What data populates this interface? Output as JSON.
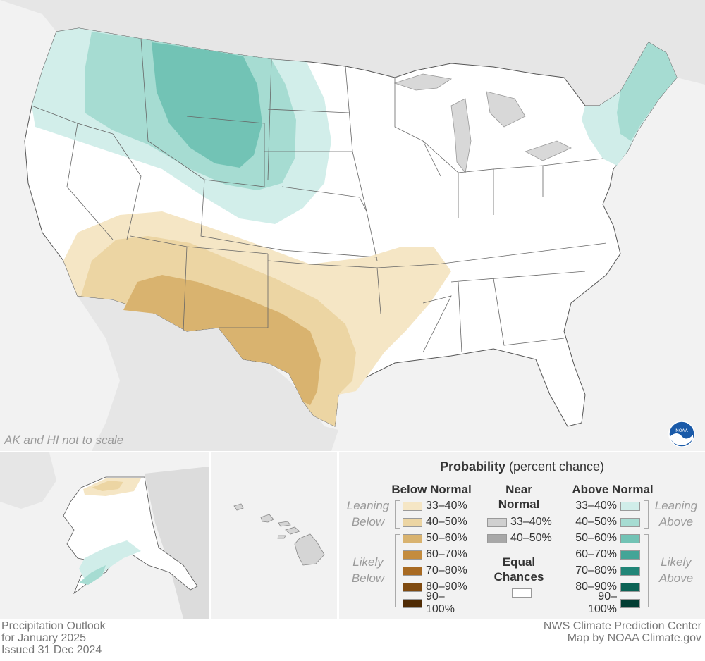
{
  "map": {
    "scale_note": "AK and HI not to scale",
    "logo": {
      "icon": "noaa-logo-icon",
      "text": "NOAA"
    }
  },
  "legend": {
    "title_bold": "Probability",
    "title_rest": " (percent chance)",
    "below": {
      "heading": "Below Normal",
      "leaning_label": [
        "Leaning",
        "Below"
      ],
      "likely_label": [
        "Likely",
        "Below"
      ],
      "items": [
        {
          "label": "33–40%",
          "color": "#f5e6c5"
        },
        {
          "label": "40–50%",
          "color": "#ecd5a3"
        },
        {
          "label": "50–60%",
          "color": "#d9b36f"
        },
        {
          "label": "60–70%",
          "color": "#c48c3e"
        },
        {
          "label": "70–80%",
          "color": "#a86a22"
        },
        {
          "label": "80–90%",
          "color": "#7f4a10"
        },
        {
          "label": "90–100%",
          "color": "#4f2b05"
        }
      ]
    },
    "near": {
      "heading": [
        "Near",
        "Normal"
      ],
      "items": [
        {
          "label": "33–40%",
          "color": "#d0d0d0"
        },
        {
          "label": "40–50%",
          "color": "#a8a8a8"
        }
      ],
      "equal_heading": [
        "Equal",
        "Chances"
      ],
      "equal_color": "#ffffff"
    },
    "above": {
      "heading": "Above Normal",
      "leaning_label": [
        "Leaning",
        "Above"
      ],
      "likely_label": [
        "Likely",
        "Above"
      ],
      "items": [
        {
          "label": "33–40%",
          "color": "#d0ede9"
        },
        {
          "label": "40–50%",
          "color": "#a6dcd2"
        },
        {
          "label": "50–60%",
          "color": "#72c3b5"
        },
        {
          "label": "60–70%",
          "color": "#43a597"
        },
        {
          "label": "70–80%",
          "color": "#218577"
        },
        {
          "label": "80–90%",
          "color": "#0b6254"
        },
        {
          "label": "90–100%",
          "color": "#033e33"
        }
      ]
    }
  },
  "footer": {
    "left": [
      "Precipitation Outlook",
      "for January 2025",
      "Issued 31 Dec 2024"
    ],
    "right": [
      "NWS Climate Prediction Center",
      "Map by NOAA Climate.gov"
    ]
  }
}
